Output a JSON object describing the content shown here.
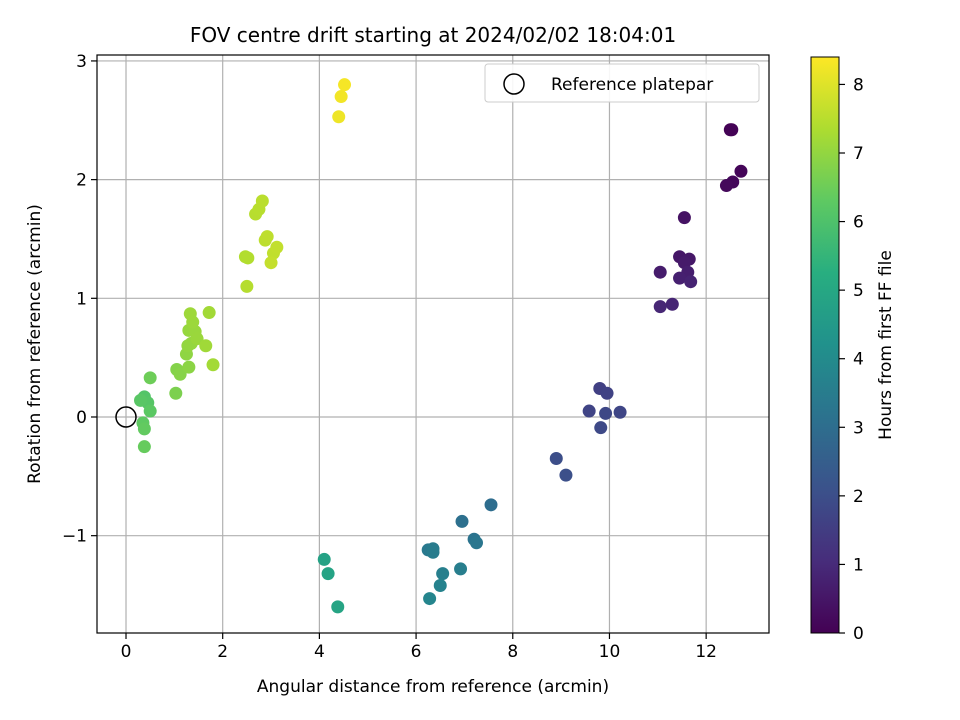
{
  "chart_data": {
    "type": "scatter",
    "title": "FOV centre drift starting at 2024/02/02 18:04:01",
    "xlabel": "Angular distance from reference (arcmin)",
    "ylabel": "Rotation from reference (arcmin)",
    "xlim": [
      -0.6,
      13.3
    ],
    "ylim": [
      -1.82,
      3.05
    ],
    "xticks": [
      0,
      2,
      4,
      6,
      8,
      10,
      12
    ],
    "yticks": [
      -1,
      0,
      1,
      2,
      3
    ],
    "xtick_labels": [
      "0",
      "2",
      "4",
      "6",
      "8",
      "10",
      "12"
    ],
    "ytick_labels": [
      "−1",
      "0",
      "1",
      "2",
      "3"
    ],
    "grid": true,
    "legend": {
      "location": "top-right",
      "entries": [
        "Reference platepar"
      ]
    },
    "reference_point": {
      "x": 0,
      "y": 0
    },
    "colorbar": {
      "label": "Hours from first FF file",
      "range": [
        0,
        8.4
      ],
      "colormap": "viridis",
      "ticks": [
        0,
        1,
        2,
        3,
        4,
        5,
        6,
        7,
        8
      ],
      "tick_labels": [
        "0",
        "1",
        "2",
        "3",
        "4",
        "5",
        "6",
        "7",
        "8"
      ]
    },
    "series": [
      {
        "points": [
          {
            "x": 12.5,
            "y": 2.42,
            "c": 0.0
          },
          {
            "x": 12.53,
            "y": 2.42,
            "c": 0.05
          },
          {
            "x": 12.72,
            "y": 2.07,
            "c": 0.1
          },
          {
            "x": 12.55,
            "y": 1.98,
            "c": 0.15
          },
          {
            "x": 12.42,
            "y": 1.95,
            "c": 0.2
          },
          {
            "x": 11.55,
            "y": 1.68,
            "c": 0.4
          },
          {
            "x": 11.45,
            "y": 1.35,
            "c": 0.5
          },
          {
            "x": 11.65,
            "y": 1.33,
            "c": 0.55
          },
          {
            "x": 11.55,
            "y": 1.3,
            "c": 0.6
          },
          {
            "x": 11.05,
            "y": 1.22,
            "c": 0.65
          },
          {
            "x": 11.62,
            "y": 1.22,
            "c": 0.7
          },
          {
            "x": 11.45,
            "y": 1.17,
            "c": 0.75
          },
          {
            "x": 11.68,
            "y": 1.14,
            "c": 0.8
          },
          {
            "x": 11.3,
            "y": 0.95,
            "c": 0.85
          },
          {
            "x": 11.05,
            "y": 0.93,
            "c": 0.9
          },
          {
            "x": 9.8,
            "y": 0.24,
            "c": 1.6
          },
          {
            "x": 9.95,
            "y": 0.2,
            "c": 1.65
          },
          {
            "x": 9.58,
            "y": 0.05,
            "c": 1.7
          },
          {
            "x": 10.22,
            "y": 0.04,
            "c": 1.75
          },
          {
            "x": 9.92,
            "y": 0.03,
            "c": 1.8
          },
          {
            "x": 9.82,
            "y": -0.09,
            "c": 1.85
          },
          {
            "x": 8.9,
            "y": -0.35,
            "c": 2.0
          },
          {
            "x": 9.1,
            "y": -0.49,
            "c": 2.05
          },
          {
            "x": 7.55,
            "y": -0.74,
            "c": 3.0
          },
          {
            "x": 6.95,
            "y": -0.88,
            "c": 3.1
          },
          {
            "x": 7.2,
            "y": -1.03,
            "c": 3.2
          },
          {
            "x": 7.25,
            "y": -1.06,
            "c": 3.3
          },
          {
            "x": 6.25,
            "y": -1.12,
            "c": 3.4
          },
          {
            "x": 6.35,
            "y": -1.11,
            "c": 3.45
          },
          {
            "x": 6.35,
            "y": -1.14,
            "c": 3.5
          },
          {
            "x": 6.92,
            "y": -1.28,
            "c": 3.55
          },
          {
            "x": 6.55,
            "y": -1.32,
            "c": 3.6
          },
          {
            "x": 6.5,
            "y": -1.42,
            "c": 3.7
          },
          {
            "x": 6.28,
            "y": -1.53,
            "c": 3.8
          },
          {
            "x": 4.1,
            "y": -1.2,
            "c": 4.8
          },
          {
            "x": 4.18,
            "y": -1.32,
            "c": 4.85
          },
          {
            "x": 4.38,
            "y": -1.6,
            "c": 4.9
          },
          {
            "x": 0.38,
            "y": 0.17,
            "c": 6.1
          },
          {
            "x": 0.45,
            "y": 0.12,
            "c": 6.15
          },
          {
            "x": 0.3,
            "y": 0.14,
            "c": 6.2
          },
          {
            "x": 0.5,
            "y": 0.05,
            "c": 6.25
          },
          {
            "x": 0.35,
            "y": -0.05,
            "c": 6.3
          },
          {
            "x": 0.38,
            "y": -0.1,
            "c": 6.35
          },
          {
            "x": 0.38,
            "y": -0.25,
            "c": 6.4
          },
          {
            "x": 0.5,
            "y": 0.33,
            "c": 6.5
          },
          {
            "x": 1.03,
            "y": 0.2,
            "c": 6.7
          },
          {
            "x": 1.05,
            "y": 0.4,
            "c": 6.8
          },
          {
            "x": 1.12,
            "y": 0.36,
            "c": 6.85
          },
          {
            "x": 1.3,
            "y": 0.42,
            "c": 6.9
          },
          {
            "x": 1.25,
            "y": 0.53,
            "c": 6.95
          },
          {
            "x": 1.28,
            "y": 0.6,
            "c": 7.0
          },
          {
            "x": 1.35,
            "y": 0.62,
            "c": 7.02
          },
          {
            "x": 1.3,
            "y": 0.73,
            "c": 7.05
          },
          {
            "x": 1.43,
            "y": 0.72,
            "c": 7.08
          },
          {
            "x": 1.47,
            "y": 0.66,
            "c": 7.1
          },
          {
            "x": 1.38,
            "y": 0.8,
            "c": 7.12
          },
          {
            "x": 1.33,
            "y": 0.87,
            "c": 7.15
          },
          {
            "x": 1.65,
            "y": 0.6,
            "c": 7.18
          },
          {
            "x": 1.72,
            "y": 0.88,
            "c": 7.2
          },
          {
            "x": 1.8,
            "y": 0.44,
            "c": 7.22
          },
          {
            "x": 2.47,
            "y": 1.35,
            "c": 7.4
          },
          {
            "x": 2.52,
            "y": 1.34,
            "c": 7.42
          },
          {
            "x": 2.5,
            "y": 1.1,
            "c": 7.45
          },
          {
            "x": 2.68,
            "y": 1.71,
            "c": 7.48
          },
          {
            "x": 2.75,
            "y": 1.75,
            "c": 7.5
          },
          {
            "x": 2.82,
            "y": 1.82,
            "c": 7.52
          },
          {
            "x": 2.88,
            "y": 1.49,
            "c": 7.55
          },
          {
            "x": 2.92,
            "y": 1.52,
            "c": 7.57
          },
          {
            "x": 3.05,
            "y": 1.38,
            "c": 7.6
          },
          {
            "x": 3.12,
            "y": 1.43,
            "c": 7.62
          },
          {
            "x": 3.0,
            "y": 1.3,
            "c": 7.65
          },
          {
            "x": 4.4,
            "y": 2.53,
            "c": 8.2
          },
          {
            "x": 4.45,
            "y": 2.7,
            "c": 8.25
          },
          {
            "x": 4.52,
            "y": 2.8,
            "c": 8.3
          }
        ]
      }
    ]
  }
}
